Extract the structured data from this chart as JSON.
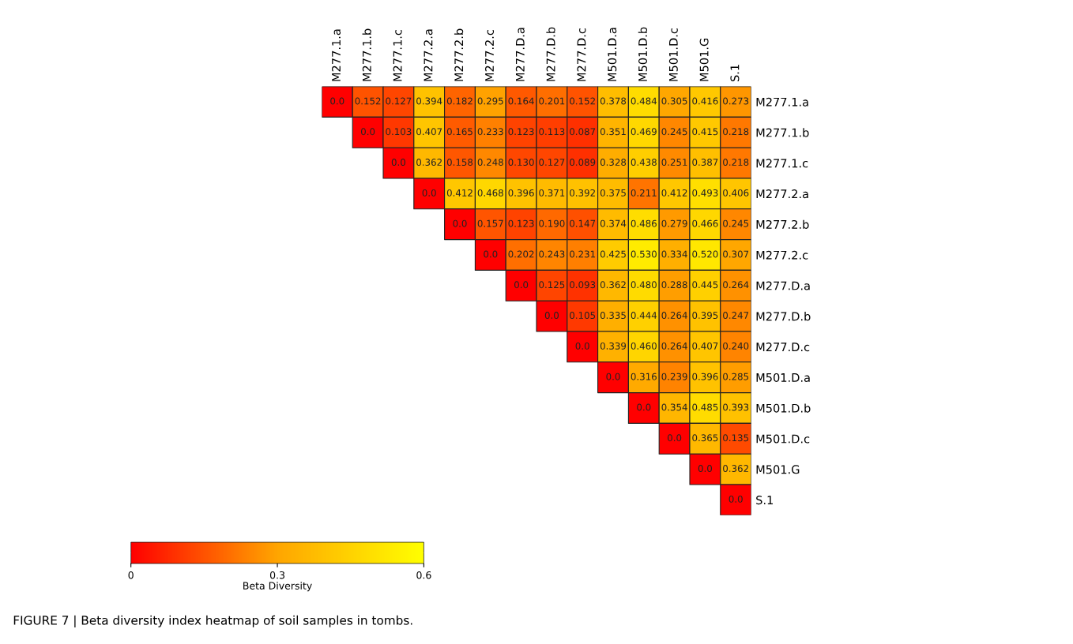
{
  "chart_data": {
    "type": "heatmap",
    "categories": [
      "M277.1.a",
      "M277.1.b",
      "M277.1.c",
      "M277.2.a",
      "M277.2.b",
      "M277.2.c",
      "M277.D.a",
      "M277.D.b",
      "M277.D.c",
      "M501.D.a",
      "M501.D.b",
      "M501.D.c",
      "M501.G",
      "S.1"
    ],
    "y_categories": [
      "M277.1.a",
      "M277.1.b",
      "M277.1.c",
      "M277.2.a",
      "M277.2.b",
      "M277.2.c",
      "M277.D.a",
      "M277.D.b",
      "M277.D.c",
      "M501.D.a",
      "M501.D.b",
      "M501.D.c",
      "M501.G",
      "S.1"
    ],
    "cells": [
      [
        0.0,
        0.152,
        0.127,
        0.394,
        0.182,
        0.295,
        0.164,
        0.201,
        0.152,
        0.378,
        0.484,
        0.305,
        0.416,
        0.273
      ],
      [
        null,
        0.0,
        0.103,
        0.407,
        0.165,
        0.233,
        0.123,
        0.113,
        0.087,
        0.351,
        0.469,
        0.245,
        0.415,
        0.218
      ],
      [
        null,
        null,
        0.0,
        0.362,
        0.158,
        0.248,
        0.13,
        0.127,
        0.089,
        0.328,
        0.438,
        0.251,
        0.387,
        0.218
      ],
      [
        null,
        null,
        null,
        0.0,
        0.412,
        0.468,
        0.396,
        0.371,
        0.392,
        0.375,
        0.211,
        0.412,
        0.493,
        0.406
      ],
      [
        null,
        null,
        null,
        null,
        0.0,
        0.157,
        0.123,
        0.19,
        0.147,
        0.374,
        0.486,
        0.279,
        0.466,
        0.245
      ],
      [
        null,
        null,
        null,
        null,
        null,
        0.0,
        0.202,
        0.243,
        0.231,
        0.425,
        0.53,
        0.334,
        0.52,
        0.307
      ],
      [
        null,
        null,
        null,
        null,
        null,
        null,
        0.0,
        0.125,
        0.093,
        0.362,
        0.48,
        0.288,
        0.445,
        0.264
      ],
      [
        null,
        null,
        null,
        null,
        null,
        null,
        null,
        0.0,
        0.105,
        0.335,
        0.444,
        0.264,
        0.395,
        0.247
      ],
      [
        null,
        null,
        null,
        null,
        null,
        null,
        null,
        null,
        0.0,
        0.339,
        0.46,
        0.264,
        0.407,
        0.24
      ],
      [
        null,
        null,
        null,
        null,
        null,
        null,
        null,
        null,
        null,
        0.0,
        0.316,
        0.239,
        0.396,
        0.285
      ],
      [
        null,
        null,
        null,
        null,
        null,
        null,
        null,
        null,
        null,
        null,
        0.0,
        0.354,
        0.485,
        0.393
      ],
      [
        null,
        null,
        null,
        null,
        null,
        null,
        null,
        null,
        null,
        null,
        null,
        0.0,
        0.365,
        0.135
      ],
      [
        null,
        null,
        null,
        null,
        null,
        null,
        null,
        null,
        null,
        null,
        null,
        null,
        0.0,
        0.362
      ],
      [
        null,
        null,
        null,
        null,
        null,
        null,
        null,
        null,
        null,
        null,
        null,
        null,
        null,
        0.0
      ]
    ],
    "cell_labels": [
      [
        "0.0",
        "0.152",
        "0.127",
        "0.394",
        "0.182",
        "0.295",
        "0.164",
        "0.201",
        "0.152",
        "0.378",
        "0.484",
        "0.305",
        "0.416",
        "0.273"
      ],
      [
        null,
        "0.0",
        "0.103",
        "0.407",
        "0.165",
        "0.233",
        "0.123",
        "0.113",
        "0.087",
        "0.351",
        "0.469",
        "0.245",
        "0.415",
        "0.218"
      ],
      [
        null,
        null,
        "0.0",
        "0.362",
        "0.158",
        "0.248",
        "0.130",
        "0.127",
        "0.089",
        "0.328",
        "0.438",
        "0.251",
        "0.387",
        "0.218"
      ],
      [
        null,
        null,
        null,
        "0.0",
        "0.412",
        "0.468",
        "0.396",
        "0.371",
        "0.392",
        "0.375",
        "0.211",
        "0.412",
        "0.493",
        "0.406"
      ],
      [
        null,
        null,
        null,
        null,
        "0.0",
        "0.157",
        "0.123",
        "0.190",
        "0.147",
        "0.374",
        "0.486",
        "0.279",
        "0.466",
        "0.245"
      ],
      [
        null,
        null,
        null,
        null,
        null,
        "0.0",
        "0.202",
        "0.243",
        "0.231",
        "0.425",
        "0.530",
        "0.334",
        "0.520",
        "0.307"
      ],
      [
        null,
        null,
        null,
        null,
        null,
        null,
        "0.0",
        "0.125",
        "0.093",
        "0.362",
        "0.480",
        "0.288",
        "0.445",
        "0.264"
      ],
      [
        null,
        null,
        null,
        null,
        null,
        null,
        null,
        "0.0",
        "0.105",
        "0.335",
        "0.444",
        "0.264",
        "0.395",
        "0.247"
      ],
      [
        null,
        null,
        null,
        null,
        null,
        null,
        null,
        null,
        "0.0",
        "0.339",
        "0.460",
        "0.264",
        "0.407",
        "0.240"
      ],
      [
        null,
        null,
        null,
        null,
        null,
        null,
        null,
        null,
        null,
        "0.0",
        "0.316",
        "0.239",
        "0.396",
        "0.285"
      ],
      [
        null,
        null,
        null,
        null,
        null,
        null,
        null,
        null,
        null,
        null,
        "0.0",
        "0.354",
        "0.485",
        "0.393"
      ],
      [
        null,
        null,
        null,
        null,
        null,
        null,
        null,
        null,
        null,
        null,
        null,
        "0.0",
        "0.365",
        "0.135"
      ],
      [
        null,
        null,
        null,
        null,
        null,
        null,
        null,
        null,
        null,
        null,
        null,
        null,
        "0.0",
        "0.362"
      ],
      [
        null,
        null,
        null,
        null,
        null,
        null,
        null,
        null,
        null,
        null,
        null,
        null,
        null,
        "0.0"
      ]
    ],
    "clim": [
      0,
      0.6
    ],
    "cticks": [
      0,
      0.3,
      0.6
    ],
    "clabel": "Beta Diversity",
    "annotations": [
      "FIGURE 7 | Beta diversity index heatmap of soil samples in tombs."
    ]
  }
}
